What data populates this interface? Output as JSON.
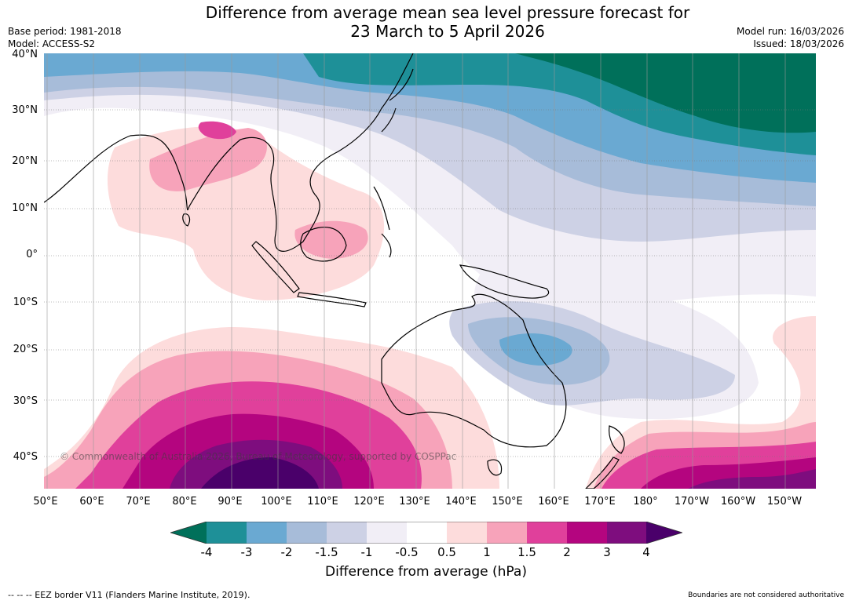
{
  "title": {
    "line1": "Difference from average mean sea level pressure forecast for",
    "line2": "23 March to 5 April 2026"
  },
  "meta": {
    "base_period": "Base period: 1981-2018",
    "model": "Model: ACCESS-S2",
    "model_run": "Model run: 16/03/2026",
    "issued": "Issued: 18/03/2026"
  },
  "axes": {
    "lat_labels": [
      "40°N",
      "30°N",
      "20°N",
      "10°N",
      "0°",
      "10°S",
      "20°S",
      "30°S",
      "40°S"
    ],
    "lon_labels": [
      "50°E",
      "60°E",
      "70°E",
      "80°E",
      "90°E",
      "100°E",
      "110°E",
      "120°E",
      "130°E",
      "140°E",
      "150°E",
      "160°E",
      "170°E",
      "180°",
      "170°W",
      "160°W",
      "150°W"
    ]
  },
  "copyright": "© Commonwealth of Australia 2026, Bureau of Meteorology, supported by COSPPac",
  "colorbar": {
    "tick_labels": [
      "-4",
      "-3",
      "-2",
      "-1.5",
      "-1",
      "-0.5",
      "0.5",
      "1",
      "1.5",
      "2",
      "3",
      "4"
    ],
    "title": "Difference from average (hPa)",
    "colors": {
      "below_min": "#00705a",
      "bins": [
        "#1e9098",
        "#6aa9d2",
        "#a7bcd9",
        "#cdd1e5",
        "#f1eef6",
        "#ffffff",
        "#fddcdc",
        "#f7a3ba",
        "#e0409b",
        "#b4057f",
        "#7e0d7e"
      ],
      "above_max": "#4a006a"
    }
  },
  "footer": {
    "left": "--  --  -- EEZ border V11 (Flanders Marine Institute, 2019).",
    "right": "Boundaries are not considered authoritative"
  }
}
